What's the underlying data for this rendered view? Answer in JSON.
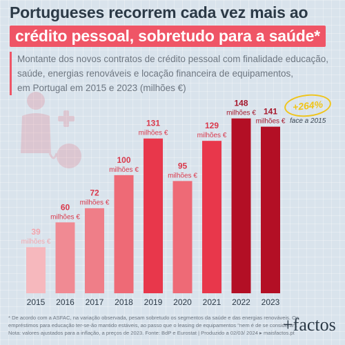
{
  "title_line1": "Portugueses recorrem cada vez mais ao",
  "title_line2": "crédito pessoal, sobretudo para a saúde*",
  "subtitle_lines": [
    "Montante dos novos contratos de crédito pessoal com finalidade educação,",
    "saúde, energias renováveis e locação financeira de equipamentos,",
    "em Portugal em 2015 e 2023 (milhões €)"
  ],
  "badge": {
    "value": "+264%",
    "note": "face a 2015"
  },
  "footnote_lines": [
    "* De acordo com a ASFAC, na variação observada, pesam sobretudo os segmentos da saúde e das energias renováveis. Os",
    "empréstimos para educação ter-se-ão mantido estáveis, ao passo que o leasing de equipamentos \"nem é de se considerar\".",
    "Nota: valores ajustados para a inflação, a preços de 2023. Fonte: BdP e Eurostat | Produzido a 02/03/ 2024 ▸ maisfactos.pt"
  ],
  "brand": "+factos",
  "colors": {
    "accent": "#ef5566",
    "bars": [
      "#f6b8bd",
      "#f08a93",
      "#ef7e88",
      "#ee6a76",
      "#e8374b",
      "#ee6a76",
      "#e8374b",
      "#b30f25",
      "#b30f25"
    ],
    "labels": [
      "#f2a5ad",
      "#d9384b",
      "#d9384b",
      "#d9384b",
      "#d9384b",
      "#d9384b",
      "#d9384b",
      "#a5172b",
      "#a5172b"
    ]
  },
  "chart_data": {
    "type": "bar",
    "categories": [
      "2015",
      "2016",
      "2017",
      "2018",
      "2019",
      "2020",
      "2021",
      "2022",
      "2023"
    ],
    "values": [
      39,
      60,
      72,
      100,
      131,
      95,
      129,
      148,
      141
    ],
    "unit_label": "milhões €",
    "grid": false
  }
}
